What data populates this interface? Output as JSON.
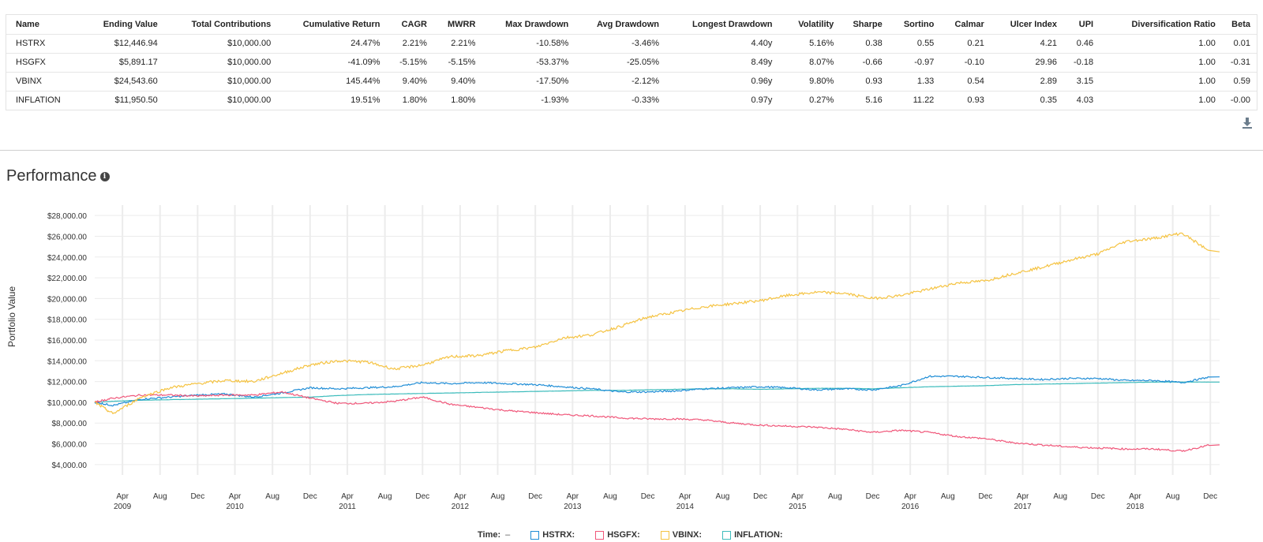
{
  "metrics_table": {
    "columns": [
      "Name",
      "Ending Value",
      "Total Contributions",
      "Cumulative Return",
      "CAGR",
      "MWRR",
      "Max Drawdown",
      "Avg Drawdown",
      "Longest Drawdown",
      "Volatility",
      "Sharpe",
      "Sortino",
      "Calmar",
      "Ulcer Index",
      "UPI",
      "Diversification Ratio",
      "Beta"
    ],
    "rows": [
      [
        "HSTRX",
        "$12,446.94",
        "$10,000.00",
        "24.47%",
        "2.21%",
        "2.21%",
        "-10.58%",
        "-3.46%",
        "4.40y",
        "5.16%",
        "0.38",
        "0.55",
        "0.21",
        "4.21",
        "0.46",
        "1.00",
        "0.01"
      ],
      [
        "HSGFX",
        "$5,891.17",
        "$10,000.00",
        "-41.09%",
        "-5.15%",
        "-5.15%",
        "-53.37%",
        "-25.05%",
        "8.49y",
        "8.07%",
        "-0.66",
        "-0.97",
        "-0.10",
        "29.96",
        "-0.18",
        "1.00",
        "-0.31"
      ],
      [
        "VBINX",
        "$24,543.60",
        "$10,000.00",
        "145.44%",
        "9.40%",
        "9.40%",
        "-17.50%",
        "-2.12%",
        "0.96y",
        "9.80%",
        "0.93",
        "1.33",
        "0.54",
        "2.89",
        "3.15",
        "1.00",
        "0.59"
      ],
      [
        "INFLATION",
        "$11,950.50",
        "$10,000.00",
        "19.51%",
        "1.80%",
        "1.80%",
        "-1.93%",
        "-0.33%",
        "0.97y",
        "0.27%",
        "5.16",
        "11.22",
        "0.93",
        "0.35",
        "4.03",
        "1.00",
        "-0.00"
      ]
    ],
    "download_icon": "download-icon"
  },
  "section": {
    "title": "Performance",
    "info_icon": "info-icon"
  },
  "legend": {
    "time_label": "Time:",
    "time_value": "–",
    "items": [
      "HSTRX:",
      "HSGFX:",
      "VBINX:",
      "INFLATION:"
    ]
  },
  "chart_data": {
    "type": "line",
    "xlabel": "",
    "ylabel": "Portfolio Value",
    "ylim": [
      3000,
      29000
    ],
    "y_ticks": [
      "$4,000.00",
      "$6,000.00",
      "$8,000.00",
      "$10,000.00",
      "$12,000.00",
      "$14,000.00",
      "$16,000.00",
      "$18,000.00",
      "$20,000.00",
      "$22,000.00",
      "$24,000.00",
      "$26,000.00",
      "$28,000.00"
    ],
    "y_tick_values": [
      4000,
      6000,
      8000,
      10000,
      12000,
      14000,
      16000,
      18000,
      20000,
      22000,
      24000,
      26000,
      28000
    ],
    "x_ticks": [
      {
        "month": "Apr",
        "year": "2009"
      },
      {
        "month": "Aug",
        "year": ""
      },
      {
        "month": "Dec",
        "year": ""
      },
      {
        "month": "Apr",
        "year": "2010"
      },
      {
        "month": "Aug",
        "year": ""
      },
      {
        "month": "Dec",
        "year": ""
      },
      {
        "month": "Apr",
        "year": "2011"
      },
      {
        "month": "Aug",
        "year": ""
      },
      {
        "month": "Dec",
        "year": ""
      },
      {
        "month": "Apr",
        "year": "2012"
      },
      {
        "month": "Aug",
        "year": ""
      },
      {
        "month": "Dec",
        "year": ""
      },
      {
        "month": "Apr",
        "year": "2013"
      },
      {
        "month": "Aug",
        "year": ""
      },
      {
        "month": "Dec",
        "year": ""
      },
      {
        "month": "Apr",
        "year": "2014"
      },
      {
        "month": "Aug",
        "year": ""
      },
      {
        "month": "Dec",
        "year": ""
      },
      {
        "month": "Apr",
        "year": "2015"
      },
      {
        "month": "Aug",
        "year": ""
      },
      {
        "month": "Dec",
        "year": ""
      },
      {
        "month": "Apr",
        "year": "2016"
      },
      {
        "month": "Aug",
        "year": ""
      },
      {
        "month": "Dec",
        "year": ""
      },
      {
        "month": "Apr",
        "year": "2017"
      },
      {
        "month": "Aug",
        "year": ""
      },
      {
        "month": "Dec",
        "year": ""
      },
      {
        "month": "Apr",
        "year": "2018"
      },
      {
        "month": "Aug",
        "year": ""
      },
      {
        "month": "Dec",
        "year": ""
      }
    ],
    "x_tick_dates": [
      "2009-04-01",
      "2009-08-01",
      "2009-12-01",
      "2010-04-01",
      "2010-08-01",
      "2010-12-01",
      "2011-04-01",
      "2011-08-01",
      "2011-12-01",
      "2012-04-01",
      "2012-08-01",
      "2012-12-01",
      "2013-04-01",
      "2013-08-01",
      "2013-12-01",
      "2014-04-01",
      "2014-08-01",
      "2014-12-01",
      "2015-04-01",
      "2015-08-01",
      "2015-12-01",
      "2016-04-01",
      "2016-08-01",
      "2016-12-01",
      "2017-04-01",
      "2017-08-01",
      "2017-12-01",
      "2018-04-01",
      "2018-08-01",
      "2018-12-01"
    ],
    "xlim": [
      "2009-01-01",
      "2018-12-31"
    ],
    "x": [
      "2009-01",
      "2009-03",
      "2009-06",
      "2009-09",
      "2009-12",
      "2010-03",
      "2010-06",
      "2010-09",
      "2010-12",
      "2011-03",
      "2011-06",
      "2011-09",
      "2011-12",
      "2012-03",
      "2012-06",
      "2012-09",
      "2012-12",
      "2013-03",
      "2013-06",
      "2013-09",
      "2013-12",
      "2014-03",
      "2014-06",
      "2014-09",
      "2014-12",
      "2015-03",
      "2015-06",
      "2015-09",
      "2015-12",
      "2016-03",
      "2016-06",
      "2016-09",
      "2016-12",
      "2017-03",
      "2017-06",
      "2017-09",
      "2017-12",
      "2018-03",
      "2018-06",
      "2018-09",
      "2018-12"
    ],
    "series": [
      {
        "name": "HSTRX",
        "color": "#1f8dd6",
        "values": [
          10000,
          9700,
          10300,
          10500,
          10700,
          10800,
          10500,
          10900,
          11400,
          11300,
          11400,
          11500,
          11900,
          11800,
          11900,
          11800,
          11700,
          11500,
          11300,
          11000,
          11000,
          11100,
          11300,
          11400,
          11500,
          11400,
          11200,
          11300,
          11200,
          11600,
          12500,
          12500,
          12400,
          12300,
          12200,
          12300,
          12300,
          12100,
          12100,
          11900,
          12450
        ]
      },
      {
        "name": "HSGFX",
        "color": "#f0577a",
        "values": [
          10000,
          10400,
          10700,
          10700,
          10600,
          10700,
          10700,
          11000,
          10400,
          9900,
          9900,
          10100,
          10500,
          9800,
          9500,
          9200,
          9000,
          8800,
          8700,
          8500,
          8400,
          8400,
          8300,
          8000,
          7800,
          7700,
          7600,
          7400,
          7100,
          7300,
          7100,
          6700,
          6500,
          6100,
          5900,
          5700,
          5600,
          5500,
          5500,
          5300,
          5900
        ]
      },
      {
        "name": "VBINX",
        "color": "#f5c342",
        "values": [
          10000,
          8900,
          10500,
          11400,
          11800,
          12100,
          12000,
          12800,
          13600,
          14000,
          13900,
          13200,
          13600,
          14400,
          14500,
          15000,
          15300,
          16200,
          16500,
          17300,
          18200,
          18700,
          19200,
          19500,
          19800,
          20300,
          20600,
          20500,
          20000,
          20300,
          20900,
          21500,
          21700,
          22400,
          23000,
          23700,
          24300,
          25500,
          25800,
          26300,
          24500
        ]
      },
      {
        "name": "INFLATION",
        "color": "#3dbcbc",
        "values": [
          10000,
          10100,
          10200,
          10250,
          10300,
          10350,
          10400,
          10450,
          10500,
          10650,
          10750,
          10800,
          10850,
          10900,
          10950,
          11000,
          11050,
          11100,
          11150,
          11150,
          11200,
          11250,
          11300,
          11300,
          11250,
          11300,
          11350,
          11350,
          11300,
          11400,
          11500,
          11550,
          11600,
          11700,
          11750,
          11800,
          11850,
          11900,
          11950,
          11950,
          11950
        ]
      }
    ]
  }
}
